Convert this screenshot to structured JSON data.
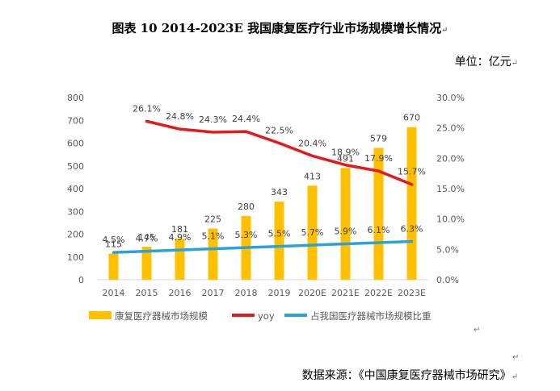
{
  "title": "图表 10   2014-2023E 我国康复医疗行业市场规模增长情况",
  "unit": "单位：亿元",
  "source": "数据来源：《中国康复医疗器械市场研究》",
  "colors": {
    "bar": "#FFC000",
    "yoy": "#E31A1C",
    "share": "#2BA3DA",
    "axis": "#D9D9D9",
    "text": "#595959"
  },
  "chart_data": {
    "type": "bar",
    "categories": [
      "2014",
      "2015",
      "2016",
      "2017",
      "2018",
      "2019",
      "2020E",
      "2021E",
      "2022E",
      "2023E"
    ],
    "series": [
      {
        "name": "康复医疗器械市场规模",
        "type": "bar",
        "axis": "left",
        "values": [
          115,
          145,
          181,
          225,
          280,
          343,
          413,
          491,
          579,
          670
        ],
        "labels": [
          "115",
          "145",
          "181",
          "225",
          "280",
          "343",
          "413",
          "491",
          "579",
          "670"
        ]
      },
      {
        "name": "yoy",
        "type": "line",
        "axis": "right",
        "values": [
          null,
          26.1,
          24.8,
          24.3,
          24.4,
          22.5,
          20.4,
          18.9,
          17.9,
          15.7
        ],
        "labels": [
          "",
          "26.1%",
          "24.8%",
          "24.3%",
          "24.4%",
          "22.5%",
          "20.4%",
          "18.9%",
          "17.9%",
          "15.7%"
        ]
      },
      {
        "name": "占我国医疗器械市场规模比重",
        "type": "line",
        "axis": "right",
        "values": [
          4.5,
          4.7,
          4.9,
          5.1,
          5.3,
          5.5,
          5.7,
          5.9,
          6.1,
          6.3
        ],
        "labels": [
          "4.5%",
          "4.7%",
          "4.9%",
          "5.1%",
          "5.3%",
          "5.5%",
          "5.7%",
          "5.9%",
          "6.1%",
          "6.3%"
        ]
      }
    ],
    "ylim": [
      0,
      800
    ],
    "yticks": [
      "0",
      "100",
      "200",
      "300",
      "400",
      "500",
      "600",
      "700",
      "800"
    ],
    "y2lim": [
      0,
      30
    ],
    "y2ticks": [
      "0.0%",
      "5.0%",
      "10.0%",
      "15.0%",
      "20.0%",
      "25.0%",
      "30.0%"
    ],
    "legend_position": "bottom"
  }
}
